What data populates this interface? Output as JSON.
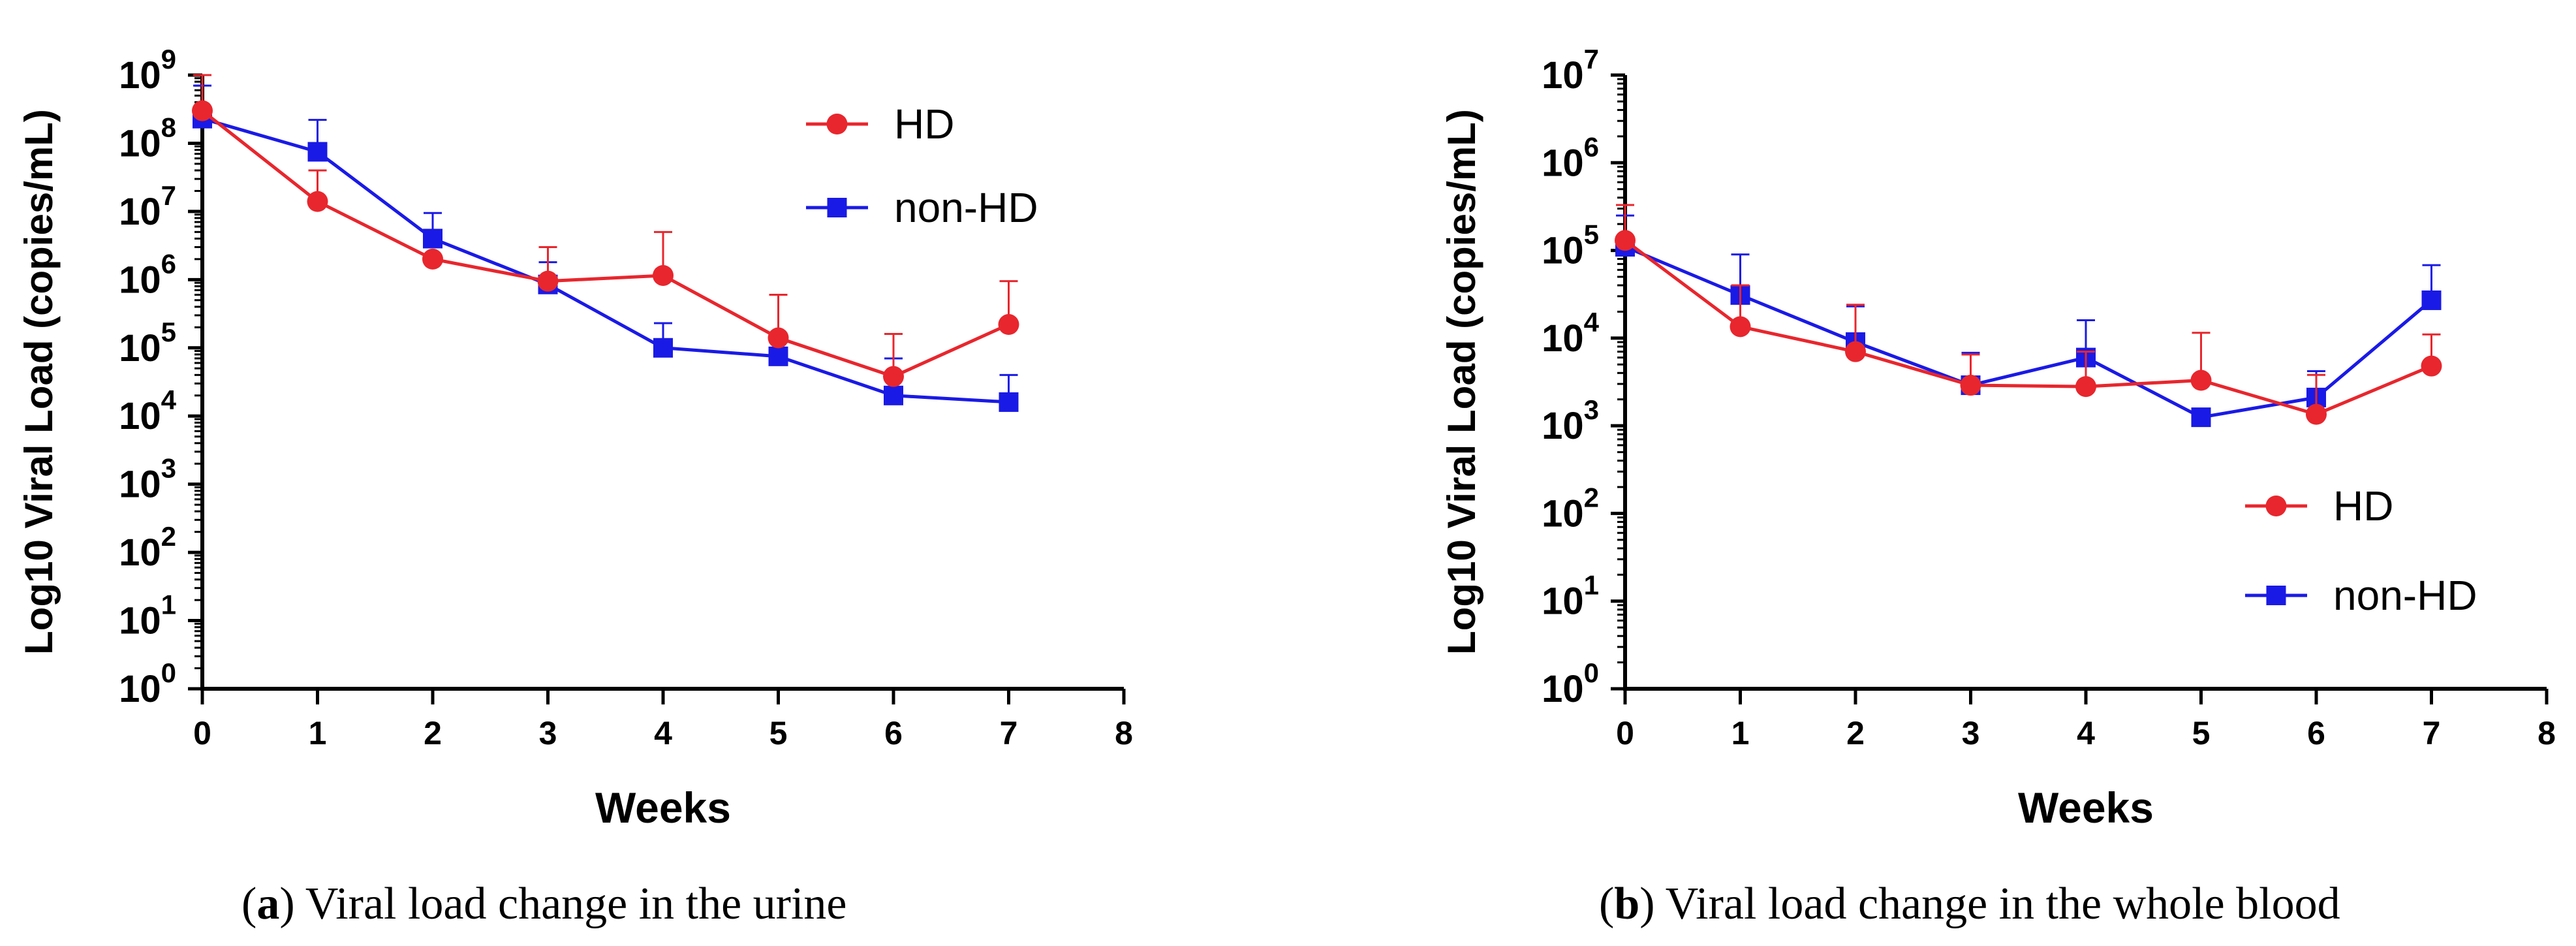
{
  "colors": {
    "hd": "#e8262d",
    "non_hd": "#1a1ae6",
    "axis": "#000000"
  },
  "chart_data": [
    {
      "type": "line",
      "panel": "a",
      "caption": {
        "letter": "a",
        "text": "Viral load change in the urine"
      },
      "xlabel": "Weeks",
      "ylabel": "Log10 Viral Load (copies/mL)",
      "xlim": [
        0,
        8
      ],
      "xticks": [
        "0",
        "1",
        "2",
        "3",
        "4",
        "5",
        "6",
        "7",
        "8"
      ],
      "ylim_exp": [
        0,
        9
      ],
      "yscale": "log10",
      "ytick_base": "10",
      "ytick_exponents": [
        "0",
        "1",
        "2",
        "3",
        "4",
        "5",
        "6",
        "7",
        "8",
        "9"
      ],
      "legend_position": "top-right",
      "series": [
        {
          "name": "HD",
          "marker": "circle",
          "x": [
            0,
            1,
            2,
            3,
            4,
            5,
            6,
            7
          ],
          "y": [
            300000000,
            14000000,
            2000000,
            950000,
            1150000,
            140000,
            38000,
            220000
          ],
          "err_upper": [
            1000000000,
            40000000,
            2100000,
            3000000,
            5000000,
            600000,
            160000,
            950000
          ]
        },
        {
          "name": "non-HD",
          "marker": "square",
          "x": [
            0,
            1,
            2,
            3,
            4,
            5,
            6,
            7
          ],
          "y": [
            230000000,
            75000000,
            4000000,
            850000,
            100000,
            75000,
            20000,
            16000
          ],
          "err_upper": [
            700000000,
            220000000,
            9500000,
            1800000,
            230000,
            120000,
            70000,
            40000
          ]
        }
      ]
    },
    {
      "type": "line",
      "panel": "b",
      "caption": {
        "letter": "b",
        "text": "Viral load change in the whole blood"
      },
      "xlabel": "Weeks",
      "ylabel": "Log10 Viral Load (copies/mL)",
      "xlim": [
        0,
        8
      ],
      "xticks": [
        "0",
        "1",
        "2",
        "3",
        "4",
        "5",
        "6",
        "7",
        "8"
      ],
      "ylim_exp": [
        0,
        7
      ],
      "yscale": "log10",
      "ytick_base": "10",
      "ytick_exponents": [
        "0",
        "1",
        "2",
        "3",
        "4",
        "5",
        "6",
        "7"
      ],
      "legend_position": "bottom-right",
      "series": [
        {
          "name": "HD",
          "marker": "circle",
          "x": [
            0,
            1,
            2,
            3,
            4,
            5,
            6,
            7
          ],
          "y": [
            130000,
            13500,
            7000,
            2900,
            2800,
            3300,
            1350,
            4800
          ],
          "err_upper": [
            330000,
            40000,
            24000,
            6500,
            7000,
            11500,
            3800,
            11000
          ]
        },
        {
          "name": "non-HD",
          "marker": "square",
          "x": [
            0,
            1,
            2,
            3,
            4,
            5,
            6,
            7
          ],
          "y": [
            110000,
            31000,
            9000,
            2900,
            6000,
            1250,
            2100,
            27000
          ],
          "err_upper": [
            250000,
            90000,
            23000,
            6800,
            16000,
            1250,
            4200,
            68000
          ]
        }
      ]
    }
  ]
}
